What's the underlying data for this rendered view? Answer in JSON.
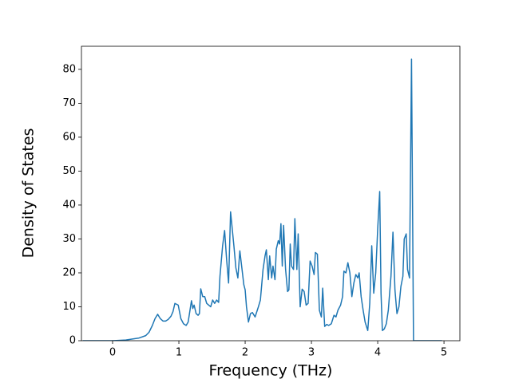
{
  "chart_data": {
    "type": "line",
    "xlabel": "Frequency (THz)",
    "ylabel": "Density of States",
    "xlim": [
      -0.47,
      5.24
    ],
    "ylim": [
      0,
      86.8
    ],
    "xticks": [
      0,
      1,
      2,
      3,
      4,
      5
    ],
    "yticks": [
      0,
      10,
      20,
      30,
      40,
      50,
      60,
      70,
      80
    ],
    "grid": false,
    "series": [
      {
        "color": "#1f77b4",
        "x": [
          -0.45,
          0,
          0.2,
          0.4,
          0.5,
          0.55,
          0.6,
          0.64,
          0.68,
          0.72,
          0.76,
          0.8,
          0.84,
          0.88,
          0.91,
          0.94,
          0.99,
          1.03,
          1.07,
          1.11,
          1.14,
          1.16,
          1.19,
          1.21,
          1.23,
          1.26,
          1.29,
          1.31,
          1.33,
          1.36,
          1.39,
          1.42,
          1.48,
          1.51,
          1.54,
          1.57,
          1.6,
          1.62,
          1.66,
          1.69,
          1.72,
          1.75,
          1.78,
          1.83,
          1.86,
          1.89,
          1.92,
          1.95,
          1.98,
          2.0,
          2.02,
          2.05,
          2.08,
          2.11,
          2.15,
          2.2,
          2.23,
          2.27,
          2.3,
          2.32,
          2.35,
          2.37,
          2.4,
          2.42,
          2.45,
          2.47,
          2.5,
          2.52,
          2.54,
          2.56,
          2.58,
          2.61,
          2.64,
          2.66,
          2.68,
          2.7,
          2.73,
          2.75,
          2.78,
          2.8,
          2.83,
          2.86,
          2.89,
          2.92,
          2.95,
          2.98,
          3.01,
          3.04,
          3.06,
          3.09,
          3.12,
          3.15,
          3.17,
          3.2,
          3.23,
          3.26,
          3.3,
          3.34,
          3.37,
          3.4,
          3.44,
          3.47,
          3.49,
          3.52,
          3.55,
          3.58,
          3.61,
          3.64,
          3.67,
          3.7,
          3.72,
          3.75,
          3.78,
          3.81,
          3.85,
          3.88,
          3.91,
          3.94,
          3.97,
          4.0,
          4.03,
          4.05,
          4.07,
          4.1,
          4.13,
          4.16,
          4.2,
          4.23,
          4.26,
          4.29,
          4.32,
          4.35,
          4.38,
          4.4,
          4.43,
          4.45,
          4.48,
          4.51,
          4.54,
          4.97
        ],
        "values": [
          0,
          0,
          0.2,
          0.8,
          1.5,
          2.5,
          4.5,
          6.5,
          7.8,
          6.5,
          5.8,
          5.8,
          6.3,
          7.2,
          8.5,
          11,
          10.5,
          6.5,
          5,
          4.5,
          5.5,
          8,
          11.8,
          9.5,
          10.5,
          8,
          7.5,
          8,
          15.3,
          13,
          13,
          11,
          10,
          12,
          11,
          12,
          11.3,
          19,
          28,
          32.5,
          24,
          17,
          38,
          28,
          21.5,
          18.5,
          26.5,
          21.5,
          16.5,
          15,
          10,
          5.5,
          8,
          8.3,
          7,
          10,
          12,
          21,
          25,
          26.8,
          18,
          25,
          18.5,
          22,
          18,
          27,
          29.5,
          28.5,
          34.5,
          22,
          34,
          21,
          14.5,
          15,
          28.5,
          22,
          21,
          36,
          21,
          31.5,
          10,
          15.2,
          14.5,
          10.5,
          11,
          23.5,
          22,
          19.5,
          26,
          25.5,
          9,
          7,
          15.5,
          4.2,
          4.8,
          4.5,
          5,
          7.5,
          7,
          9,
          10.5,
          13,
          20.5,
          20,
          23,
          20,
          13,
          17,
          19.5,
          18.5,
          20,
          13,
          9,
          5.5,
          3,
          11,
          28,
          14,
          20,
          33,
          44,
          14,
          3,
          3.5,
          5,
          9,
          19,
          32,
          15,
          8,
          10,
          16,
          19,
          30,
          31.5,
          21,
          18.5,
          83,
          0,
          0
        ]
      }
    ]
  }
}
